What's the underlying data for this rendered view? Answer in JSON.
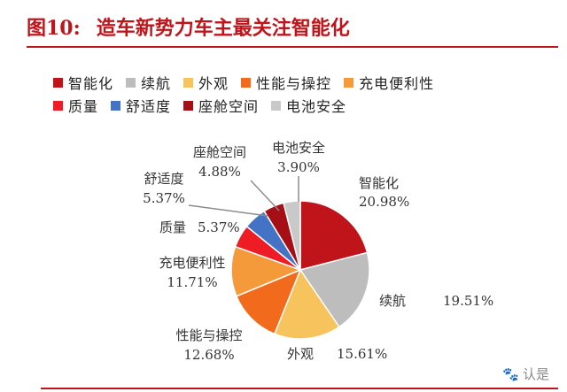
{
  "figure": {
    "number": "图10:",
    "title": "造车新势力车主最关注智能化"
  },
  "watermark": "认是",
  "chart_data": {
    "type": "pie",
    "title": "",
    "legend_position": "top",
    "slices": [
      {
        "name": "智能化",
        "value": 20.98,
        "label": "20.98%",
        "color": "#c0141b"
      },
      {
        "name": "续航",
        "value": 19.51,
        "label": "19.51%",
        "color": "#bdbdbd"
      },
      {
        "name": "外观",
        "value": 15.61,
        "label": "15.61%",
        "color": "#f7c35c"
      },
      {
        "name": "性能与操控",
        "value": 12.68,
        "label": "12.68%",
        "color": "#f26a1b"
      },
      {
        "name": "充电便利性",
        "value": 11.71,
        "label": "11.71%",
        "color": "#f59a3b"
      },
      {
        "name": "质量",
        "value": 5.37,
        "label": "5.37%",
        "color": "#ee1c25"
      },
      {
        "name": "舒适度",
        "value": 5.37,
        "label": "5.37%",
        "color": "#4472c4"
      },
      {
        "name": "座舱空间",
        "value": 4.88,
        "label": "4.88%",
        "color": "#a50f15"
      },
      {
        "name": "电池安全",
        "value": 3.9,
        "label": "3.90%",
        "color": "#c9c9c9"
      }
    ]
  }
}
